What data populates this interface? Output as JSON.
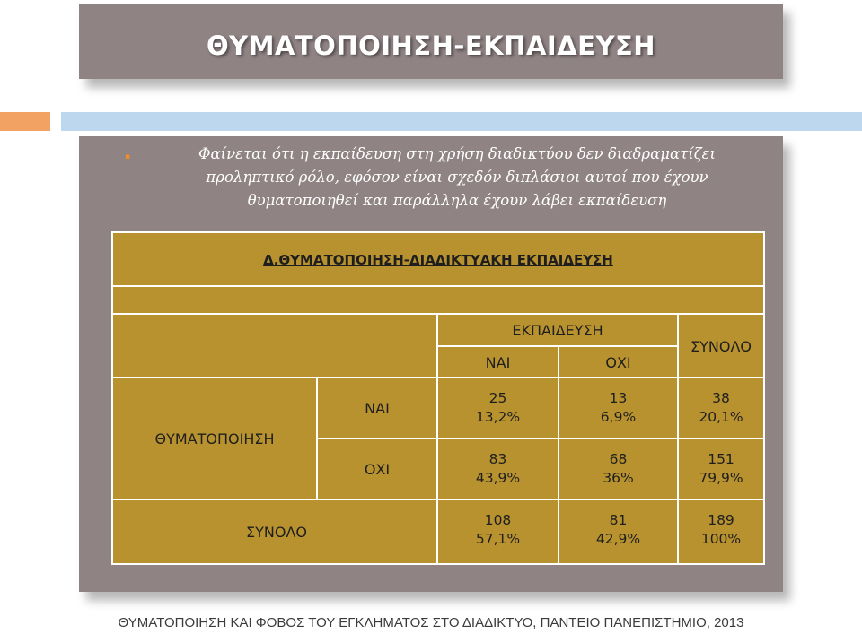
{
  "slide": {
    "title": "ΘΥΜΑΤΟΠΟΙΗΣΗ-ΕΚΠΑΙΔΕΥΣΗ",
    "bullet_text": "Φαίνεται ότι η εκπαίδευση στη χρήση διαδικτύου δεν διαδραματίζει προληπτικό ρόλο, εφόσον είναι σχεδόν διπλάσιοι αυτοί που έχουν θυματοποιηθεί και παράλληλα έχουν λάβει εκπαίδευση",
    "footer": "ΘΥΜΑΤΟΠΟΙΗΣΗ ΚΑΙ ΦΟΒΟΣ ΤΟΥ ΕΓΚΛΗΜΑΤΟΣ ΣΤΟ ΔΙΑΔΙΚΤΥΟ, ΠΑΝΤΕΙΟ ΠΑΝΕΠΙΣΤΗΜΙΟ, 2013"
  },
  "table": {
    "title": "Δ.ΘΥΜΑΤΟΠΟΙΗΣΗ-ΔΙΑΔΙΚΤΥΑΚΗ ΕΚΠΑΙΔΕΥΣΗ",
    "col_group": "ΕΚΠΑΙΔΕΥΣΗ",
    "col_yes": "ΝΑΙ",
    "col_no": "ΟΧΙ",
    "col_total": "ΣΥΝΟΛΟ",
    "row_group": "ΘΥΜΑΤΟΠΟΙΗΣΗ",
    "row_yes": "ΝΑΙ",
    "row_no": "ΟΧΙ",
    "row_total": "ΣΥΝΟΛΟ",
    "yes_yes_n": "25",
    "yes_yes_p": "13,2%",
    "yes_no_n": "13",
    "yes_no_p": "6,9%",
    "yes_total_n": "38",
    "yes_total_p": "20,1%",
    "no_yes_n": "83",
    "no_yes_p": "43,9%",
    "no_no_n": "68",
    "no_no_p": "36%",
    "no_total_n": "151",
    "no_total_p": "79,9%",
    "total_yes_n": "108",
    "total_yes_p": "57,1%",
    "total_no_n": "81",
    "total_no_p": "42,9%",
    "total_total_n": "189",
    "total_total_p": "100%"
  }
}
